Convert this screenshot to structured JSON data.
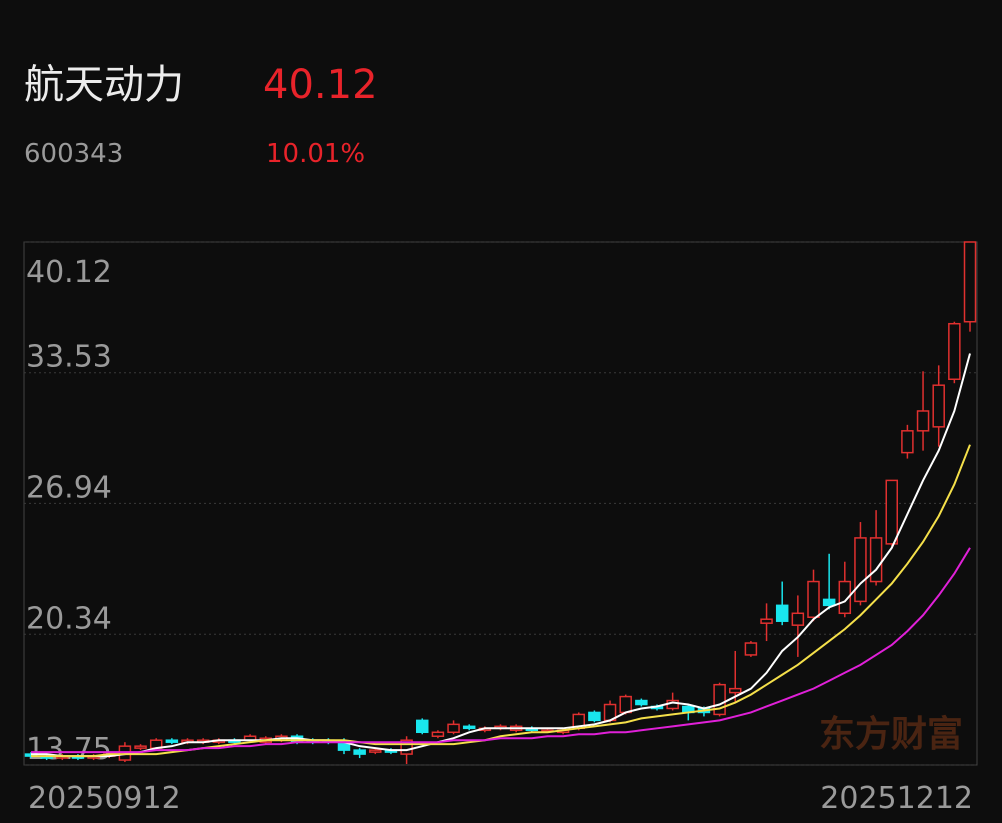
{
  "header": {
    "name": "航天动力",
    "price": "40.12",
    "code": "600343",
    "change": "10.01%"
  },
  "chart_data": {
    "type": "candlestick",
    "categories": [
      "20250912",
      null,
      null,
      null,
      null,
      null,
      null,
      null,
      null,
      null,
      null,
      null,
      null,
      null,
      null,
      null,
      null,
      null,
      null,
      null,
      null,
      null,
      null,
      null,
      null,
      null,
      null,
      null,
      null,
      null,
      null,
      null,
      null,
      null,
      null,
      null,
      null,
      null,
      null,
      null,
      null,
      null,
      null,
      null,
      null,
      null,
      null,
      null,
      null,
      null,
      null,
      null,
      null,
      null,
      null,
      null,
      null,
      null,
      null,
      null,
      "20251212"
    ],
    "open": [
      14.3,
      14.2,
      14.1,
      14.2,
      14.1,
      14.2,
      14.0,
      14.6,
      14.6,
      15.0,
      14.9,
      14.9,
      14.9,
      15.0,
      15.0,
      14.9,
      15.0,
      15.2,
      15.0,
      15.0,
      14.9,
      14.5,
      14.4,
      14.5,
      14.3,
      16.0,
      15.2,
      15.4,
      15.7,
      15.5,
      15.6,
      15.5,
      15.6,
      15.5,
      15.4,
      15.6,
      16.4,
      16.0,
      16.4,
      17.0,
      16.7,
      16.6,
      16.7,
      16.6,
      16.3,
      17.4,
      19.3,
      20.9,
      21.8,
      20.8,
      21.2,
      22.1,
      21.4,
      22.0,
      23.0,
      24.9,
      29.5,
      30.6,
      30.8,
      33.2,
      36.1
    ],
    "high": [
      14.4,
      14.3,
      14.3,
      14.3,
      14.3,
      14.4,
      14.9,
      14.8,
      15.1,
      15.1,
      15.1,
      15.1,
      15.1,
      15.1,
      15.3,
      15.2,
      15.3,
      15.3,
      15.1,
      15.1,
      15.1,
      14.6,
      14.6,
      14.6,
      15.2,
      16.1,
      15.5,
      16.0,
      15.8,
      15.7,
      15.8,
      15.8,
      15.7,
      15.6,
      15.6,
      16.4,
      16.5,
      17.0,
      17.3,
      17.1,
      16.8,
      17.4,
      16.8,
      16.7,
      17.9,
      19.5,
      20.0,
      21.9,
      23.0,
      22.3,
      23.6,
      24.4,
      24.0,
      26.0,
      26.6,
      28.1,
      30.9,
      33.6,
      33.9,
      36.1,
      40.12
    ],
    "low": [
      14.1,
      14.0,
      14.0,
      14.0,
      14.0,
      14.1,
      13.9,
      14.5,
      14.5,
      14.8,
      14.8,
      14.8,
      14.8,
      14.8,
      14.9,
      14.8,
      14.9,
      14.8,
      14.8,
      14.8,
      14.3,
      14.1,
      14.3,
      14.3,
      13.8,
      15.3,
      15.1,
      15.3,
      15.5,
      15.4,
      15.5,
      15.4,
      15.4,
      15.4,
      15.3,
      15.5,
      15.9,
      15.9,
      16.3,
      16.7,
      16.5,
      16.5,
      16.0,
      16.2,
      16.2,
      16.9,
      19.2,
      20.0,
      20.8,
      19.2,
      21.0,
      21.6,
      21.2,
      21.8,
      22.8,
      24.8,
      29.2,
      29.6,
      29.8,
      33.0,
      35.6
    ],
    "close": [
      14.2,
      14.1,
      14.2,
      14.1,
      14.2,
      14.3,
      14.7,
      14.7,
      15.0,
      14.9,
      15.0,
      15.0,
      15.0,
      14.9,
      15.2,
      15.1,
      15.2,
      14.9,
      14.9,
      14.9,
      14.5,
      14.3,
      14.5,
      14.4,
      15.0,
      15.4,
      15.4,
      15.8,
      15.6,
      15.6,
      15.7,
      15.7,
      15.5,
      15.5,
      15.5,
      16.3,
      16.0,
      16.8,
      17.2,
      16.8,
      16.6,
      17.0,
      16.4,
      16.4,
      17.8,
      17.6,
      19.9,
      21.1,
      21.0,
      21.4,
      23.0,
      21.8,
      23.0,
      25.2,
      25.2,
      28.1,
      30.6,
      31.6,
      32.9,
      36.0,
      40.12
    ],
    "series": [
      {
        "color": "#ffffff",
        "values": [
          14.3,
          14.3,
          14.2,
          14.2,
          14.2,
          14.2,
          14.3,
          14.4,
          14.6,
          14.7,
          14.9,
          14.9,
          15.0,
          15.0,
          15.0,
          15.0,
          15.1,
          15.1,
          15.0,
          15.0,
          14.9,
          14.7,
          14.6,
          14.5,
          14.5,
          14.7,
          14.9,
          15.1,
          15.4,
          15.6,
          15.6,
          15.6,
          15.6,
          15.6,
          15.6,
          15.7,
          15.8,
          16.0,
          16.4,
          16.6,
          16.7,
          16.9,
          16.8,
          16.6,
          16.8,
          17.2,
          17.6,
          18.4,
          19.5,
          20.2,
          21.1,
          21.7,
          22.0,
          22.9,
          23.6,
          24.7,
          26.4,
          28.1,
          29.6,
          31.6,
          34.5
        ]
      },
      {
        "color": "#f5e04a",
        "values": [
          14.2,
          14.2,
          14.2,
          14.2,
          14.2,
          14.3,
          14.3,
          14.3,
          14.3,
          14.4,
          14.5,
          14.6,
          14.7,
          14.8,
          14.9,
          15.0,
          15.0,
          15.0,
          15.0,
          15.0,
          15.0,
          14.9,
          14.8,
          14.8,
          14.8,
          14.8,
          14.8,
          14.8,
          14.9,
          15.0,
          15.2,
          15.3,
          15.4,
          15.4,
          15.5,
          15.6,
          15.7,
          15.8,
          15.9,
          16.1,
          16.2,
          16.3,
          16.4,
          16.5,
          16.6,
          16.9,
          17.3,
          17.8,
          18.3,
          18.8,
          19.4,
          20.0,
          20.6,
          21.3,
          22.1,
          22.9,
          23.9,
          25.0,
          26.3,
          27.9,
          29.9
        ]
      },
      {
        "color": "#e020d8",
        "values": [
          14.4,
          14.4,
          14.4,
          14.4,
          14.4,
          14.4,
          14.4,
          14.4,
          14.5,
          14.5,
          14.5,
          14.6,
          14.6,
          14.7,
          14.7,
          14.8,
          14.8,
          14.9,
          14.9,
          14.9,
          14.9,
          14.9,
          14.9,
          14.9,
          14.9,
          14.9,
          14.9,
          15.0,
          15.0,
          15.0,
          15.1,
          15.1,
          15.1,
          15.2,
          15.2,
          15.3,
          15.3,
          15.4,
          15.4,
          15.5,
          15.6,
          15.7,
          15.8,
          15.9,
          16.0,
          16.2,
          16.4,
          16.7,
          17.0,
          17.3,
          17.6,
          18.0,
          18.4,
          18.8,
          19.3,
          19.8,
          20.5,
          21.3,
          22.3,
          23.4,
          24.7
        ]
      }
    ],
    "ylim": [
      13.75,
      40.12
    ],
    "yticks": [
      13.75,
      20.34,
      26.94,
      33.53,
      40.12
    ],
    "grid": true,
    "up_color": "#e0302f",
    "down_color": "#19e6ee",
    "watermark": "东方财富"
  }
}
